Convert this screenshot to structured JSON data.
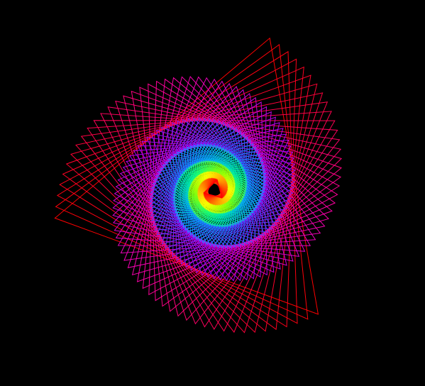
{
  "canvas": {
    "background": "#000000",
    "drawing": "rotating-triangle-spiral",
    "triangle_count": 180,
    "rotation_step_degrees": 4,
    "shrink_ratio_per_step": 0.985,
    "palette": [
      "#ff0000",
      "#ff00aa",
      "#aa00ff",
      "#3355ff",
      "#00aaff",
      "#00ff88",
      "#88ff00",
      "#ffff00",
      "#ff8800",
      "#ff0000"
    ]
  }
}
